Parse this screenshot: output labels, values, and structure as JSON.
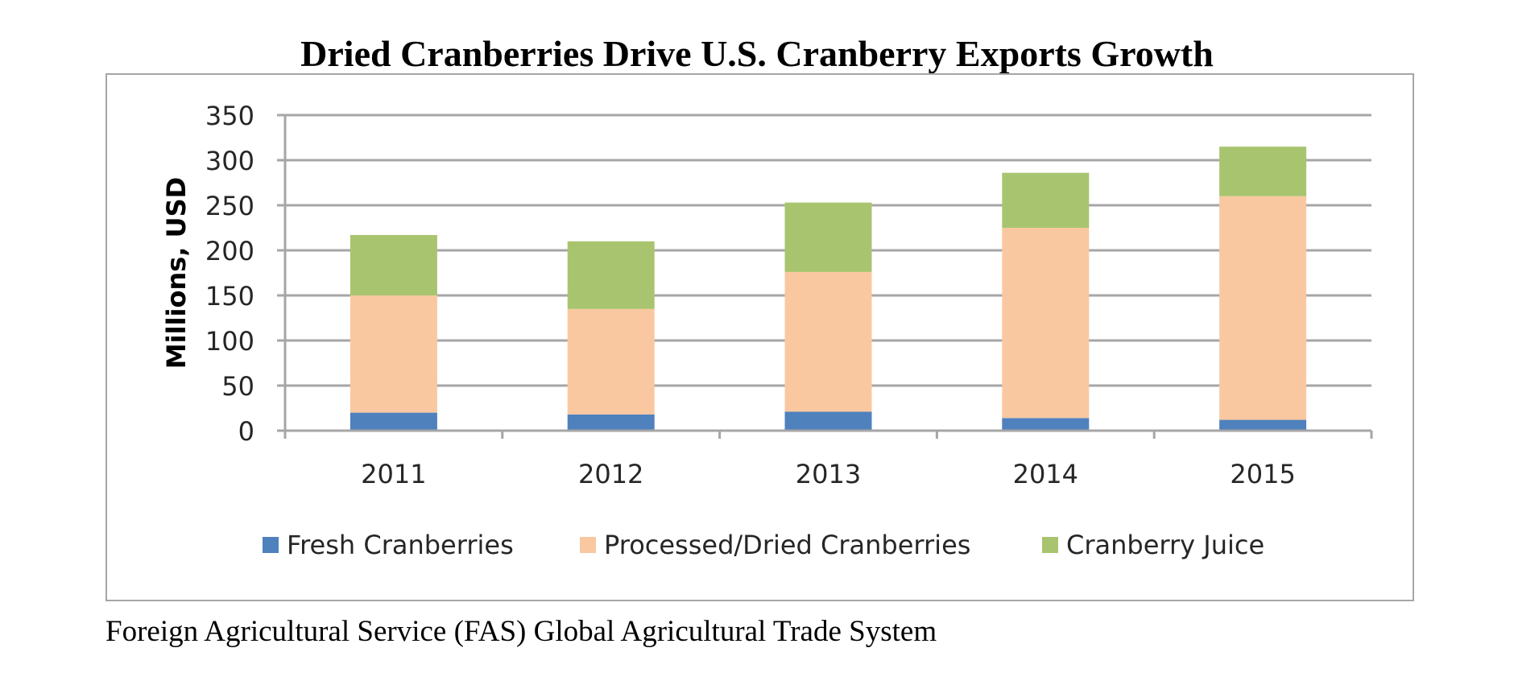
{
  "chart_data": {
    "type": "bar",
    "stacked": true,
    "title": "Dried Cranberries Drive U.S. Cranberry Exports Growth",
    "xlabel": "",
    "ylabel": "Millions, USD",
    "ylim": [
      0,
      350
    ],
    "yticks": [
      0,
      50,
      100,
      150,
      200,
      250,
      300,
      350
    ],
    "grid": true,
    "legend_position": "bottom",
    "categories": [
      "2011",
      "2012",
      "2013",
      "2014",
      "2015"
    ],
    "series": [
      {
        "name": "Fresh Cranberries",
        "color": "#4f81bd",
        "values": [
          20,
          18,
          21,
          14,
          12
        ]
      },
      {
        "name": "Processed/Dried Cranberries",
        "color": "#fac8a0",
        "values": [
          130,
          117,
          155,
          211,
          248
        ]
      },
      {
        "name": "Cranberry Juice",
        "color": "#a9c46f",
        "values": [
          67,
          75,
          77,
          61,
          55
        ]
      }
    ]
  },
  "source_note": "Foreign Agricultural Service (FAS) Global Agricultural Trade System"
}
